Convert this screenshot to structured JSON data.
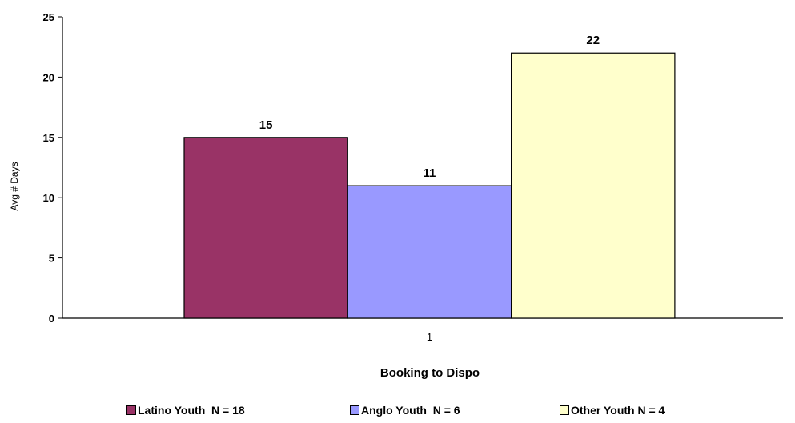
{
  "chart_data": {
    "type": "bar",
    "categories": [
      "1"
    ],
    "series": [
      {
        "name": "Latino Youth  N = 18",
        "values": [
          15
        ],
        "color": "#993366"
      },
      {
        "name": "Anglo Youth  N = 6",
        "values": [
          11
        ],
        "color": "#9999FF"
      },
      {
        "name": "Other Youth N = 4",
        "values": [
          22
        ],
        "color": "#FFFFCC"
      }
    ],
    "title": "",
    "xlabel": "Booking to Dispo",
    "ylabel": "Avg # Days",
    "ylim": [
      0,
      25
    ],
    "yticks": [
      0,
      5,
      10,
      15,
      20,
      25
    ],
    "data_labels": [
      "15",
      "11",
      "22"
    ],
    "grid": false,
    "legend_position": "bottom"
  }
}
